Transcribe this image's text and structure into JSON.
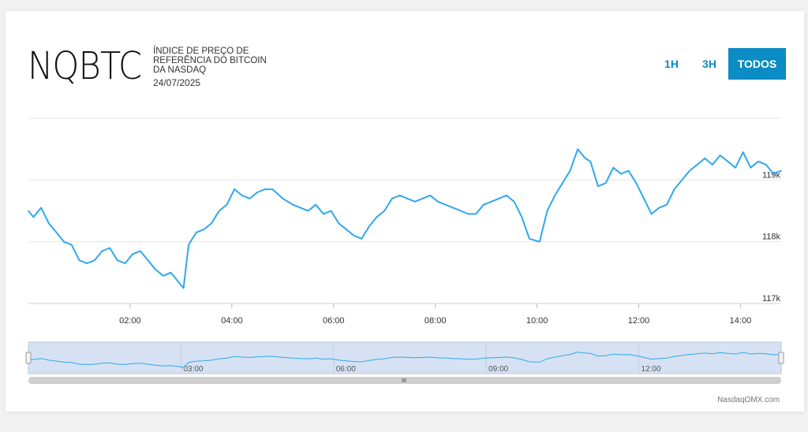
{
  "header": {
    "ticker": "NQBTC",
    "description": "ÍNDICE DE PREÇO DE REFERÊNCIA DO BITCOIN DA NASDAQ",
    "date": "24/07/2025"
  },
  "range_buttons": [
    {
      "label": "1H",
      "active": false
    },
    {
      "label": "3H",
      "active": false
    },
    {
      "label": "TODOS",
      "active": true
    }
  ],
  "credit": "NasdaqOMX.com",
  "colors": {
    "line": "#2fa8ee",
    "accent": "#0b8cc4",
    "navigator_fill": "#d6e2f3",
    "grid": "#e6e6e6"
  },
  "chart_data": {
    "type": "line",
    "x_unit": "hours",
    "xlim": [
      0.0,
      14.8
    ],
    "ylim": [
      117000,
      120000
    ],
    "x_tick_labels": [
      "02:00",
      "04:00",
      "06:00",
      "08:00",
      "10:00",
      "12:00",
      "14:00"
    ],
    "x_tick_values": [
      2,
      4,
      6,
      8,
      10,
      12,
      14
    ],
    "y_tick_labels": [
      "117k",
      "118k",
      "119k"
    ],
    "y_tick_values": [
      117000,
      118000,
      119000
    ],
    "grid": true,
    "navigator_tick_labels": [
      "03:00",
      "06:00",
      "09:00",
      "12:00"
    ],
    "navigator_tick_values": [
      3,
      6,
      9,
      12
    ],
    "x": [
      0.0,
      0.1,
      0.25,
      0.4,
      0.55,
      0.7,
      0.85,
      1.0,
      1.15,
      1.3,
      1.45,
      1.6,
      1.75,
      1.9,
      2.05,
      2.2,
      2.35,
      2.5,
      2.65,
      2.8,
      2.95,
      3.05,
      3.15,
      3.3,
      3.45,
      3.6,
      3.75,
      3.9,
      4.05,
      4.2,
      4.35,
      4.5,
      4.65,
      4.8,
      5.0,
      5.2,
      5.35,
      5.5,
      5.65,
      5.8,
      5.95,
      6.1,
      6.25,
      6.4,
      6.55,
      6.7,
      6.85,
      7.0,
      7.15,
      7.3,
      7.45,
      7.6,
      7.75,
      7.9,
      8.05,
      8.2,
      8.35,
      8.5,
      8.65,
      8.8,
      8.95,
      9.1,
      9.25,
      9.4,
      9.55,
      9.7,
      9.85,
      10.05,
      10.2,
      10.35,
      10.5,
      10.65,
      10.8,
      10.95,
      11.05,
      11.2,
      11.35,
      11.5,
      11.65,
      11.8,
      11.95,
      12.1,
      12.25,
      12.4,
      12.55,
      12.7,
      12.85,
      13.0,
      13.15,
      13.3,
      13.45,
      13.6,
      13.75,
      13.9,
      14.05,
      14.2,
      14.35,
      14.5,
      14.65,
      14.8
    ],
    "values": [
      118500,
      118400,
      118550,
      118300,
      118150,
      118000,
      117950,
      117700,
      117650,
      117700,
      117850,
      117900,
      117700,
      117650,
      117800,
      117850,
      117700,
      117550,
      117450,
      117500,
      117350,
      117250,
      117950,
      118150,
      118200,
      118300,
      118500,
      118600,
      118850,
      118750,
      118700,
      118800,
      118850,
      118850,
      118700,
      118600,
      118550,
      118500,
      118600,
      118450,
      118500,
      118300,
      118200,
      118100,
      118050,
      118250,
      118400,
      118500,
      118700,
      118750,
      118700,
      118650,
      118700,
      118750,
      118650,
      118600,
      118550,
      118500,
      118450,
      118450,
      118600,
      118650,
      118700,
      118750,
      118650,
      118400,
      118050,
      118000,
      118500,
      118750,
      118950,
      119150,
      119500,
      119350,
      119300,
      118900,
      118950,
      119200,
      119100,
      119150,
      118950,
      118700,
      118450,
      118550,
      118600,
      118850,
      119000,
      119150,
      119250,
      119350,
      119250,
      119400,
      119300,
      119200,
      119450,
      119200,
      119300,
      119250,
      119100,
      119150
    ]
  }
}
